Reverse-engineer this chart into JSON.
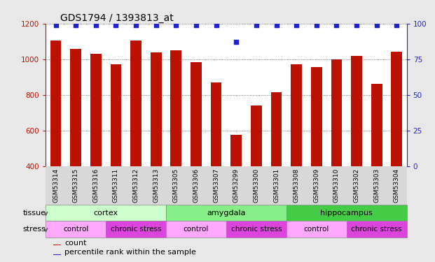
{
  "title": "GDS1794 / 1393813_at",
  "samples": [
    "GSM53314",
    "GSM53315",
    "GSM53316",
    "GSM53311",
    "GSM53312",
    "GSM53313",
    "GSM53305",
    "GSM53306",
    "GSM53307",
    "GSM53299",
    "GSM53300",
    "GSM53301",
    "GSM53308",
    "GSM53309",
    "GSM53310",
    "GSM53302",
    "GSM53303",
    "GSM53304"
  ],
  "counts": [
    1107,
    1060,
    1032,
    972,
    1107,
    1040,
    1050,
    985,
    870,
    576,
    740,
    815,
    972,
    957,
    1000,
    1020,
    862,
    1042
  ],
  "percentiles": [
    99,
    99,
    99,
    99,
    99,
    99,
    99,
    99,
    99,
    87,
    99,
    99,
    99,
    99,
    99,
    99,
    99,
    99
  ],
  "bar_color": "#bb1100",
  "dot_color": "#2222cc",
  "ylim_left": [
    400,
    1200
  ],
  "ylim_right": [
    0,
    100
  ],
  "yticks_left": [
    400,
    600,
    800,
    1000,
    1200
  ],
  "yticks_right": [
    0,
    25,
    50,
    75,
    100
  ],
  "tissue_groups": [
    {
      "label": "cortex",
      "start": 0,
      "end": 6,
      "color": "#ccffcc"
    },
    {
      "label": "amygdala",
      "start": 6,
      "end": 12,
      "color": "#88ee88"
    },
    {
      "label": "hippocampus",
      "start": 12,
      "end": 18,
      "color": "#44cc44"
    }
  ],
  "stress_groups": [
    {
      "label": "control",
      "start": 0,
      "end": 3,
      "color": "#ffaaff"
    },
    {
      "label": "chronic stress",
      "start": 3,
      "end": 6,
      "color": "#dd44dd"
    },
    {
      "label": "control",
      "start": 6,
      "end": 9,
      "color": "#ffaaff"
    },
    {
      "label": "chronic stress",
      "start": 9,
      "end": 12,
      "color": "#dd44dd"
    },
    {
      "label": "control",
      "start": 12,
      "end": 15,
      "color": "#ffaaff"
    },
    {
      "label": "chronic stress",
      "start": 15,
      "end": 18,
      "color": "#dd44dd"
    }
  ],
  "legend_count_color": "#bb1100",
  "legend_dot_color": "#2222cc",
  "background_color": "#e8e8e8",
  "plot_bg_color": "#ffffff",
  "xticklabel_bg": "#d8d8d8",
  "label_tissue": "tissue",
  "label_stress": "stress",
  "n_samples": 18
}
